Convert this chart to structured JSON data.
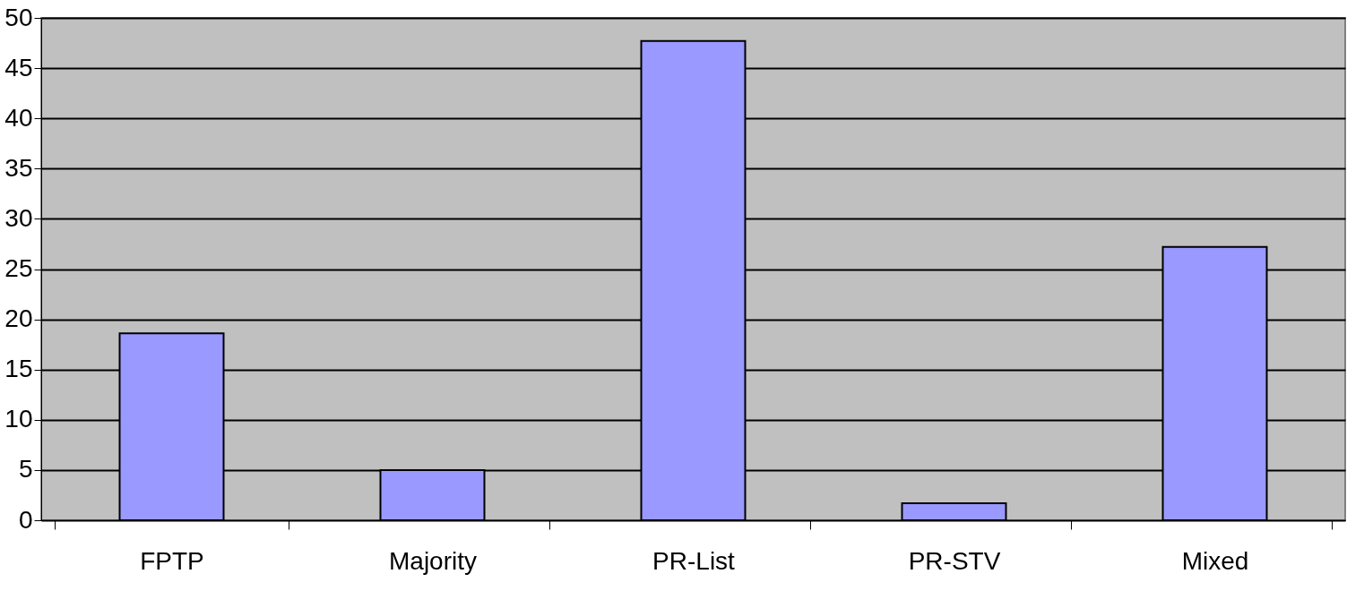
{
  "chart_data": {
    "type": "bar",
    "categories": [
      "FPTP",
      "Majority",
      "PR-List",
      "PR-STV",
      "Mixed"
    ],
    "values": [
      18.6,
      5,
      47.7,
      1.7,
      27.2
    ],
    "color": "#9999ff",
    "ylim": [
      0,
      50
    ],
    "yticks": [
      0,
      5,
      10,
      15,
      20,
      25,
      30,
      35,
      40,
      45,
      50
    ],
    "grid": "y"
  }
}
